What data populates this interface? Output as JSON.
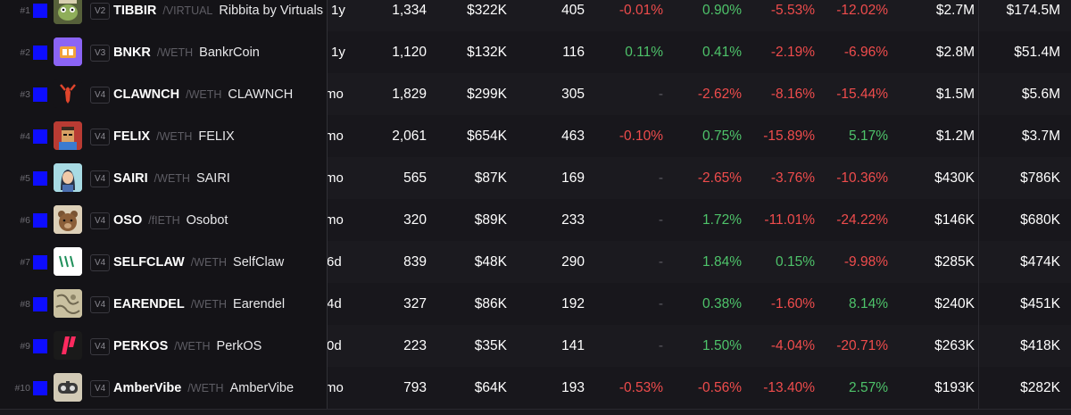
{
  "colors": {
    "positive": "#4ec36a",
    "negative": "#ef4c4c",
    "chain_badge": "#0d0dff"
  },
  "rows": [
    {
      "rank": "#1",
      "version": "V2",
      "symbol": "TIBBIR",
      "quote": "/VIRTUAL",
      "name": "Ribbita by Virtuals",
      "age": "1y",
      "txns": "1,334",
      "volume": "$322K",
      "makers": "405",
      "c5m": "-0.01%",
      "c1h": "0.90%",
      "c6h": "-5.53%",
      "c24h": "-12.02%",
      "liquidity": "$2.7M",
      "mcap": "$174.5M",
      "icon": "tibbir-avatar-icon"
    },
    {
      "rank": "#2",
      "version": "V3",
      "symbol": "BNKR",
      "quote": "/WETH",
      "name": "BankrCoin",
      "age": "1y",
      "txns": "1,120",
      "volume": "$132K",
      "makers": "116",
      "c5m": "0.11%",
      "c1h": "0.41%",
      "c6h": "-2.19%",
      "c24h": "-6.96%",
      "liquidity": "$2.8M",
      "mcap": "$51.4M",
      "icon": "bnkr-avatar-icon"
    },
    {
      "rank": "#3",
      "version": "V4",
      "symbol": "CLAWNCH",
      "quote": "/WETH",
      "name": "CLAWNCH",
      "age": "mo",
      "txns": "1,829",
      "volume": "$299K",
      "makers": "305",
      "c5m": "-",
      "c1h": "-2.62%",
      "c6h": "-8.16%",
      "c24h": "-15.44%",
      "liquidity": "$1.5M",
      "mcap": "$5.6M",
      "icon": "lobster-avatar-icon"
    },
    {
      "rank": "#4",
      "version": "V4",
      "symbol": "FELIX",
      "quote": "/WETH",
      "name": "FELIX",
      "age": "mo",
      "txns": "2,061",
      "volume": "$654K",
      "makers": "463",
      "c5m": "-0.10%",
      "c1h": "0.75%",
      "c6h": "-15.89%",
      "c24h": "5.17%",
      "liquidity": "$1.2M",
      "mcap": "$3.7M",
      "icon": "felix-avatar-icon"
    },
    {
      "rank": "#5",
      "version": "V4",
      "symbol": "SAIRI",
      "quote": "/WETH",
      "name": "SAIRI",
      "age": "mo",
      "txns": "565",
      "volume": "$87K",
      "makers": "169",
      "c5m": "-",
      "c1h": "-2.65%",
      "c6h": "-3.76%",
      "c24h": "-10.36%",
      "liquidity": "$430K",
      "mcap": "$786K",
      "icon": "sairi-avatar-icon"
    },
    {
      "rank": "#6",
      "version": "V4",
      "symbol": "OSO",
      "quote": "/fIETH",
      "name": "Osobot",
      "age": "mo",
      "txns": "320",
      "volume": "$89K",
      "makers": "233",
      "c5m": "-",
      "c1h": "1.72%",
      "c6h": "-11.01%",
      "c24h": "-24.22%",
      "liquidity": "$146K",
      "mcap": "$680K",
      "icon": "bear-avatar-icon"
    },
    {
      "rank": "#7",
      "version": "V4",
      "symbol": "SELFCLAW",
      "quote": "/WETH",
      "name": "SelfClaw",
      "age": "6d",
      "txns": "839",
      "volume": "$48K",
      "makers": "290",
      "c5m": "-",
      "c1h": "1.84%",
      "c6h": "0.15%",
      "c24h": "-9.98%",
      "liquidity": "$285K",
      "mcap": "$474K",
      "icon": "selfclaw-avatar-icon"
    },
    {
      "rank": "#8",
      "version": "V4",
      "symbol": "EARENDEL",
      "quote": "/WETH",
      "name": "Earendel",
      "age": "4d",
      "txns": "327",
      "volume": "$86K",
      "makers": "192",
      "c5m": "-",
      "c1h": "0.38%",
      "c6h": "-1.60%",
      "c24h": "8.14%",
      "liquidity": "$240K",
      "mcap": "$451K",
      "icon": "earendel-avatar-icon"
    },
    {
      "rank": "#9",
      "version": "V4",
      "symbol": "PERKOS",
      "quote": "/WETH",
      "name": "PerkOS",
      "age": "0d",
      "txns": "223",
      "volume": "$35K",
      "makers": "141",
      "c5m": "-",
      "c1h": "1.50%",
      "c6h": "-4.04%",
      "c24h": "-20.71%",
      "liquidity": "$263K",
      "mcap": "$418K",
      "icon": "perkos-avatar-icon"
    },
    {
      "rank": "#10",
      "version": "V4",
      "symbol": "AmberVibe",
      "quote": "/WETH",
      "name": "AmberVibe",
      "age": "mo",
      "txns": "793",
      "volume": "$64K",
      "makers": "193",
      "c5m": "-0.53%",
      "c1h": "-0.56%",
      "c6h": "-13.40%",
      "c24h": "2.57%",
      "liquidity": "$193K",
      "mcap": "$282K",
      "icon": "ambervibe-avatar-icon"
    }
  ]
}
